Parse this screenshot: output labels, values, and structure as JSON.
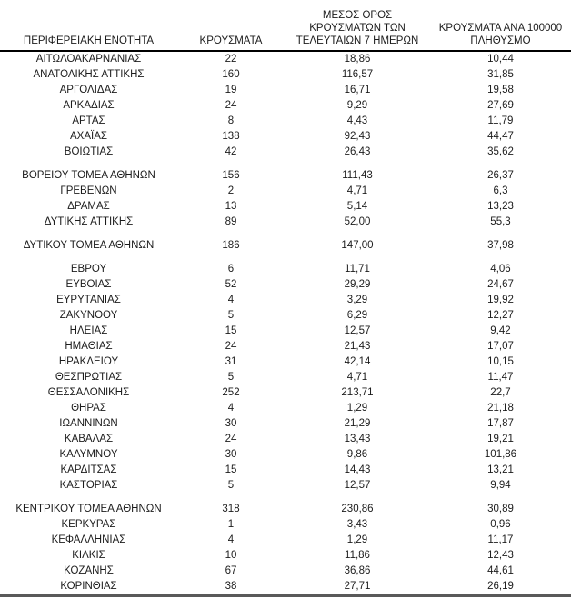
{
  "page": {
    "background": "#ffffff",
    "text_color": "#1c1c1c",
    "header_rule_color": "#000000",
    "bottom_rule_color": "#595959"
  },
  "table": {
    "headers": [
      {
        "id": "region",
        "lines": [
          "ΠΕΡΙΦΕΡΕΙΑΚΗ ΕΝΟΤΗΤΑ"
        ]
      },
      {
        "id": "cases",
        "lines": [
          "ΚΡΟΥΣΜΑΤΑ"
        ]
      },
      {
        "id": "avg7",
        "lines": [
          "ΜΕΣΟΣ ΟΡΟΣ",
          "ΚΡΟΥΣΜΑΤΩΝ ΤΩΝ",
          "ΤΕΛΕΥΤΑΙΩΝ 7 ΗΜΕΡΩΝ"
        ]
      },
      {
        "id": "per100k",
        "lines": [
          "ΚΡΟΥΣΜΑΤΑ ΑΝΑ 100000",
          "ΠΛΗΘΥΣΜΟ"
        ]
      }
    ],
    "rows": [
      {
        "region": "ΑΙΤΩΛΟΑΚΑΡΝΑΝΙΑΣ",
        "cases": "22",
        "avg7": "18,86",
        "per100k": "10,44"
      },
      {
        "region": "ΑΝΑΤΟΛΙΚΗΣ ΑΤΤΙΚΗΣ",
        "cases": "160",
        "avg7": "116,57",
        "per100k": "31,85"
      },
      {
        "region": "ΑΡΓΟΛΙΔΑΣ",
        "cases": "19",
        "avg7": "16,71",
        "per100k": "19,58"
      },
      {
        "region": "ΑΡΚΑΔΙΑΣ",
        "cases": "24",
        "avg7": "9,29",
        "per100k": "27,69"
      },
      {
        "region": "ΑΡΤΑΣ",
        "cases": "8",
        "avg7": "4,43",
        "per100k": "11,79"
      },
      {
        "region": "ΑΧΑΪΑΣ",
        "cases": "138",
        "avg7": "92,43",
        "per100k": "44,47"
      },
      {
        "region": "ΒΟΙΩΤΙΑΣ",
        "cases": "42",
        "avg7": "26,43",
        "per100k": "35,62"
      },
      {
        "spacer": true
      },
      {
        "region": "ΒΟΡΕΙΟΥ ΤΟΜΕΑ ΑΘΗΝΩΝ",
        "cases": "156",
        "avg7": "111,43",
        "per100k": "26,37"
      },
      {
        "region": "ΓΡΕΒΕΝΩΝ",
        "cases": "2",
        "avg7": "4,71",
        "per100k": "6,3"
      },
      {
        "region": "ΔΡΑΜΑΣ",
        "cases": "13",
        "avg7": "5,14",
        "per100k": "13,23"
      },
      {
        "region": "ΔΥΤΙΚΗΣ ΑΤΤΙΚΗΣ",
        "cases": "89",
        "avg7": "52,00",
        "per100k": "55,3"
      },
      {
        "spacer": true
      },
      {
        "region": "ΔΥΤΙΚΟΥ ΤΟΜΕΑ ΑΘΗΝΩΝ",
        "cases": "186",
        "avg7": "147,00",
        "per100k": "37,98"
      },
      {
        "spacer": true
      },
      {
        "region": "ΕΒΡΟΥ",
        "cases": "6",
        "avg7": "11,71",
        "per100k": "4,06"
      },
      {
        "region": "ΕΥΒΟΙΑΣ",
        "cases": "52",
        "avg7": "29,29",
        "per100k": "24,67"
      },
      {
        "region": "ΕΥΡΥΤΑΝΙΑΣ",
        "cases": "4",
        "avg7": "3,29",
        "per100k": "19,92"
      },
      {
        "region": "ΖΑΚΥΝΘΟΥ",
        "cases": "5",
        "avg7": "6,29",
        "per100k": "12,27"
      },
      {
        "region": "ΗΛΕΙΑΣ",
        "cases": "15",
        "avg7": "12,57",
        "per100k": "9,42"
      },
      {
        "region": "ΗΜΑΘΙΑΣ",
        "cases": "24",
        "avg7": "21,43",
        "per100k": "17,07"
      },
      {
        "region": "ΗΡΑΚΛΕΙΟΥ",
        "cases": "31",
        "avg7": "42,14",
        "per100k": "10,15"
      },
      {
        "region": "ΘΕΣΠΡΩΤΙΑΣ",
        "cases": "5",
        "avg7": "4,71",
        "per100k": "11,47"
      },
      {
        "region": "ΘΕΣΣΑΛΟΝΙΚΗΣ",
        "cases": "252",
        "avg7": "213,71",
        "per100k": "22,7"
      },
      {
        "region": "ΘΗΡΑΣ",
        "cases": "4",
        "avg7": "1,29",
        "per100k": "21,18"
      },
      {
        "region": "ΙΩΑΝΝΙΝΩΝ",
        "cases": "30",
        "avg7": "21,29",
        "per100k": "17,87"
      },
      {
        "region": "ΚΑΒΑΛΑΣ",
        "cases": "24",
        "avg7": "13,43",
        "per100k": "19,21"
      },
      {
        "region": "ΚΑΛΥΜΝΟΥ",
        "cases": "30",
        "avg7": "9,86",
        "per100k": "101,86"
      },
      {
        "region": "ΚΑΡΔΙΤΣΑΣ",
        "cases": "15",
        "avg7": "14,43",
        "per100k": "13,21"
      },
      {
        "region": "ΚΑΣΤΟΡΙΑΣ",
        "cases": "5",
        "avg7": "12,57",
        "per100k": "9,94"
      },
      {
        "spacer": true
      },
      {
        "region": "ΚΕΝΤΡΙΚΟΥ ΤΟΜΕΑ ΑΘΗΝΩΝ",
        "cases": "318",
        "avg7": "230,86",
        "per100k": "30,89"
      },
      {
        "region": "ΚΕΡΚΥΡΑΣ",
        "cases": "1",
        "avg7": "3,43",
        "per100k": "0,96"
      },
      {
        "region": "ΚΕΦΑΛΛΗΝΙΑΣ",
        "cases": "4",
        "avg7": "1,29",
        "per100k": "11,17"
      },
      {
        "region": "ΚΙΛΚΙΣ",
        "cases": "10",
        "avg7": "11,86",
        "per100k": "12,43"
      },
      {
        "region": "ΚΟΖΑΝΗΣ",
        "cases": "67",
        "avg7": "36,86",
        "per100k": "44,61"
      },
      {
        "region": "ΚΟΡΙΝΘΙΑΣ",
        "cases": "38",
        "avg7": "27,71",
        "per100k": "26,19"
      }
    ]
  }
}
